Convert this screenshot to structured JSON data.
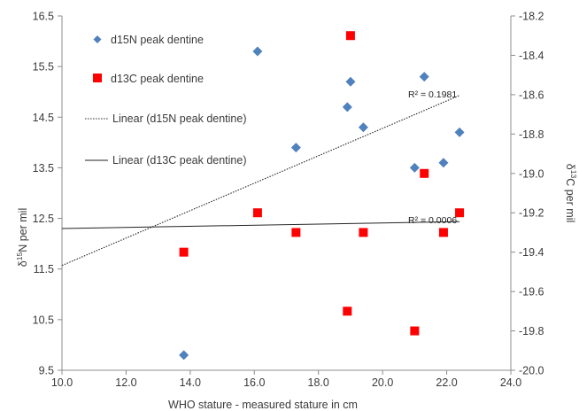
{
  "chart_data": {
    "type": "scatter",
    "xlabel": "WHO stature -  measured stature in cm",
    "ylabel_left": {
      "prefix": "δ",
      "sup": "15",
      "suffix": "N per mil"
    },
    "ylabel_right": {
      "prefix": "δ",
      "sup": "13",
      "suffix": "C per mil"
    },
    "xlim": [
      10.0,
      24.0
    ],
    "ylim_left": [
      9.5,
      16.5
    ],
    "ylim_right": [
      -20.0,
      -18.2
    ],
    "x_ticks": [
      "10.0",
      "12.0",
      "14.0",
      "16.0",
      "18.0",
      "20.0",
      "22.0",
      "24.0"
    ],
    "y_left_ticks": [
      "9.5",
      "10.5",
      "11.5",
      "12.5",
      "13.5",
      "14.5",
      "15.5",
      "16.5"
    ],
    "y_right_ticks": [
      "-20.0",
      "-19.8",
      "-19.6",
      "-19.4",
      "-19.2",
      "-19.0",
      "-18.8",
      "-18.6",
      "-18.4",
      "-18.2"
    ],
    "grid": false,
    "legend_position": "top-left",
    "series": [
      {
        "name": "d15N peak dentine",
        "axis": "left",
        "marker": "diamond",
        "color": "#4f81bd",
        "points": [
          [
            13.8,
            9.8
          ],
          [
            16.1,
            15.8
          ],
          [
            17.3,
            13.9
          ],
          [
            18.9,
            14.7
          ],
          [
            19.0,
            15.2
          ],
          [
            19.4,
            14.3
          ],
          [
            21.0,
            13.5
          ],
          [
            21.3,
            15.3
          ],
          [
            21.9,
            13.6
          ],
          [
            22.4,
            14.2
          ]
        ]
      },
      {
        "name": "d13C peak dentine",
        "axis": "right",
        "marker": "square",
        "color": "#ff0000",
        "points": [
          [
            13.8,
            -19.4
          ],
          [
            16.1,
            -19.2
          ],
          [
            17.3,
            -19.3
          ],
          [
            18.9,
            -19.7
          ],
          [
            19.0,
            -18.3
          ],
          [
            19.4,
            -19.3
          ],
          [
            21.0,
            -19.8
          ],
          [
            21.3,
            -19.0
          ],
          [
            21.9,
            -19.3
          ],
          [
            22.4,
            -19.2
          ]
        ]
      }
    ],
    "trendlines": [
      {
        "name": "Linear (d15N peak dentine)",
        "axis": "left",
        "style": "dotted",
        "x_range": [
          10.0,
          22.4
        ],
        "y_range": [
          11.57,
          14.93
        ],
        "r2_label": "R² = 0.1981"
      },
      {
        "name": "Linear (d13C peak dentine)",
        "axis": "right",
        "style": "solid",
        "x_range": [
          10.0,
          22.4
        ],
        "y_range": [
          -19.28,
          -19.245
        ],
        "r2_label": "R² = 0.0006"
      }
    ]
  }
}
